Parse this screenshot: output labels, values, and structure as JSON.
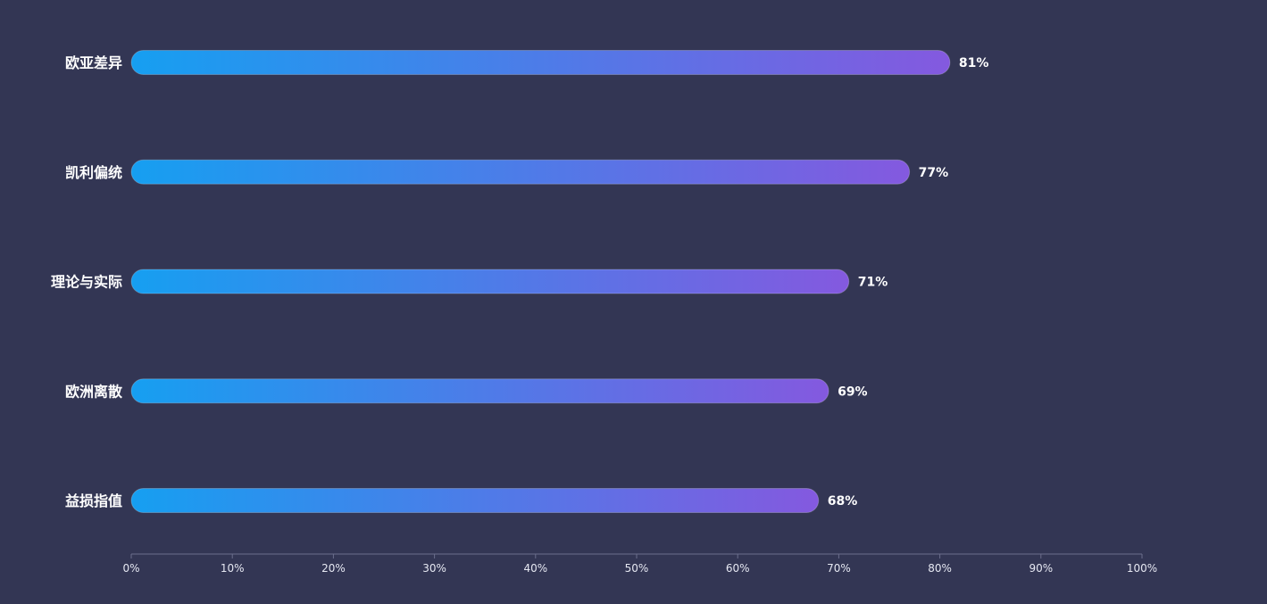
{
  "chart_data": {
    "type": "bar",
    "orientation": "horizontal",
    "categories": [
      "欧亚差异",
      "凯利偏统",
      "理论与实际",
      "欧洲离散",
      "益损指值"
    ],
    "values": [
      81,
      77,
      71,
      69,
      68
    ],
    "value_labels": [
      "81%",
      "77%",
      "71%",
      "69%",
      "68%"
    ],
    "xlim": [
      0,
      100
    ],
    "x_ticks": [
      "0%",
      "10%",
      "20%",
      "30%",
      "40%",
      "50%",
      "60%",
      "70%",
      "80%",
      "90%",
      "100%"
    ],
    "title": "",
    "xlabel": "",
    "ylabel": "",
    "grid": false,
    "colors": {
      "background": "#333654",
      "bar_gradient_start": "#169ff1",
      "bar_gradient_end": "#8459df",
      "text": "#ffffff",
      "axis": "#6b6e8c"
    }
  }
}
